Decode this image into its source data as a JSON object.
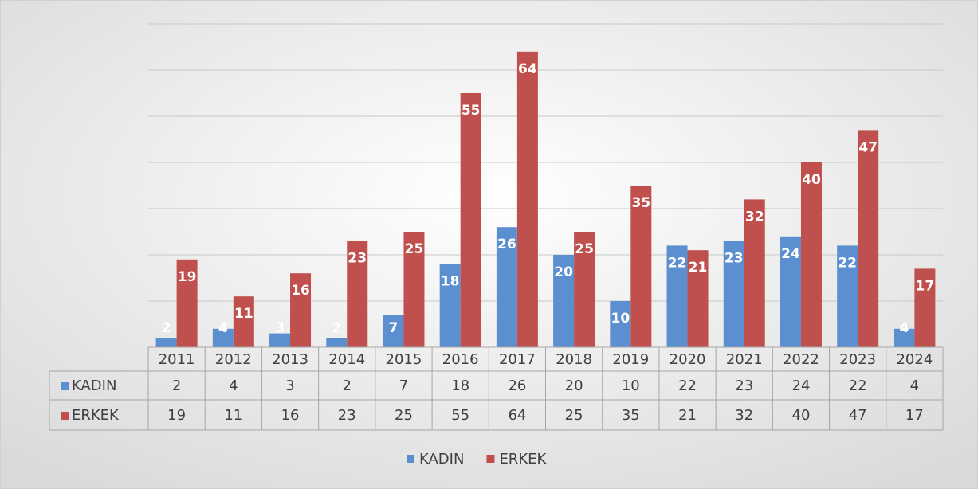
{
  "chart_data": {
    "type": "bar",
    "categories": [
      "2011",
      "2012",
      "2013",
      "2014",
      "2015",
      "2016",
      "2017",
      "2018",
      "2019",
      "2020",
      "2021",
      "2022",
      "2023",
      "2024"
    ],
    "series": [
      {
        "name": "KADIN",
        "color": "#5b8fd0",
        "values": [
          2,
          4,
          3,
          2,
          7,
          18,
          26,
          20,
          10,
          22,
          23,
          24,
          22,
          4
        ]
      },
      {
        "name": "ERKEK",
        "color": "#c0504d",
        "values": [
          19,
          11,
          16,
          23,
          25,
          55,
          64,
          25,
          35,
          21,
          32,
          40,
          47,
          17
        ]
      }
    ],
    "ylim": [
      0,
      70
    ],
    "yticks": [
      0,
      10,
      20,
      30,
      40,
      50,
      60,
      70
    ],
    "grid": true,
    "legend": "bottom",
    "data_table": true
  }
}
